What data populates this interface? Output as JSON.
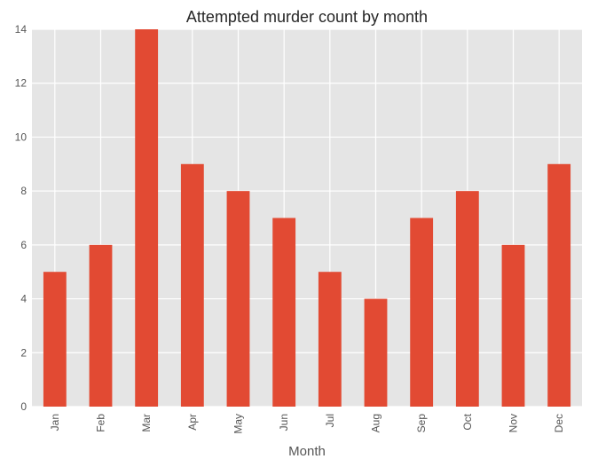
{
  "chart_data": {
    "type": "bar",
    "title": "Attempted murder count by month",
    "xlabel": "Month",
    "ylabel": "",
    "categories": [
      "Jan",
      "Feb",
      "Mar",
      "Apr",
      "May",
      "Jun",
      "Jul",
      "Aug",
      "Sep",
      "Oct",
      "Nov",
      "Dec"
    ],
    "values": [
      5,
      6,
      14,
      9,
      8,
      7,
      5,
      4,
      7,
      8,
      6,
      9
    ],
    "ylim": [
      0,
      14
    ],
    "yticks": [
      0,
      2,
      4,
      6,
      8,
      10,
      12,
      14
    ],
    "grid": true,
    "legend": "none",
    "colors": {
      "bar": "#E24A33",
      "plot_background": "#E5E5E5",
      "grid": "#FFFFFF",
      "text": "#555555"
    }
  }
}
